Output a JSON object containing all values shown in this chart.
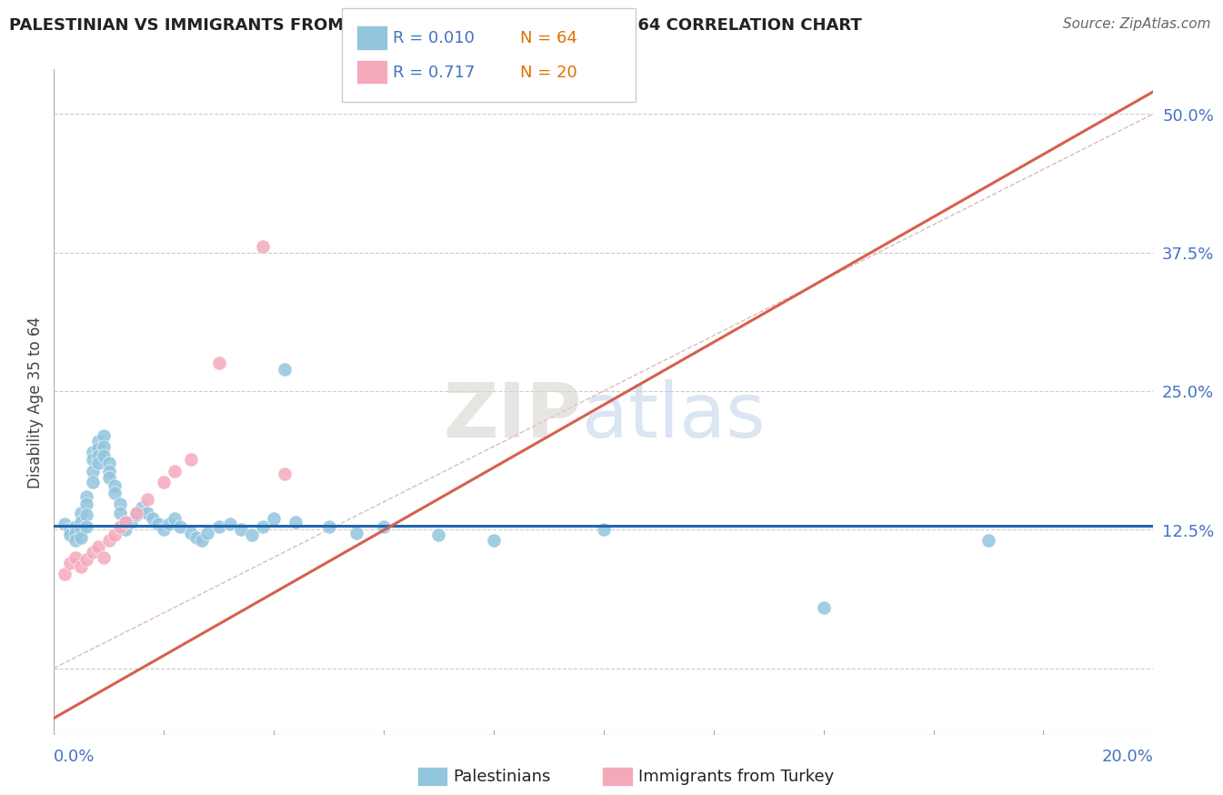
{
  "title": "PALESTINIAN VS IMMIGRANTS FROM TURKEY DISABILITY AGE 35 TO 64 CORRELATION CHART",
  "source": "Source: ZipAtlas.com",
  "ylabel": "Disability Age 35 to 64",
  "xmin": 0.0,
  "xmax": 0.2,
  "ymin": -0.06,
  "ymax": 0.54,
  "yticks": [
    0.0,
    0.125,
    0.25,
    0.375,
    0.5
  ],
  "ytick_labels": [
    "",
    "12.5%",
    "25.0%",
    "37.5%",
    "50.0%"
  ],
  "legend_r1": "R = 0.010",
  "legend_n1": "N = 64",
  "legend_r2": "R = 0.717",
  "legend_n2": "N = 20",
  "blue_color": "#92c5de",
  "pink_color": "#f4a9bb",
  "line_blue_color": "#2166ac",
  "line_pink_color": "#d6604d",
  "ref_line_color": "#ccb0b0",
  "blue_scatter_size": 120,
  "pink_scatter_size": 120,
  "blue_x": [
    0.002,
    0.003,
    0.003,
    0.004,
    0.004,
    0.004,
    0.005,
    0.005,
    0.005,
    0.005,
    0.006,
    0.006,
    0.006,
    0.006,
    0.007,
    0.007,
    0.007,
    0.007,
    0.008,
    0.008,
    0.008,
    0.008,
    0.009,
    0.009,
    0.009,
    0.01,
    0.01,
    0.01,
    0.011,
    0.011,
    0.012,
    0.012,
    0.013,
    0.013,
    0.014,
    0.015,
    0.016,
    0.017,
    0.018,
    0.019,
    0.02,
    0.021,
    0.022,
    0.023,
    0.025,
    0.026,
    0.027,
    0.028,
    0.03,
    0.032,
    0.034,
    0.036,
    0.038,
    0.04,
    0.042,
    0.044,
    0.05,
    0.055,
    0.06,
    0.07,
    0.08,
    0.1,
    0.14,
    0.17
  ],
  "blue_y": [
    0.13,
    0.125,
    0.12,
    0.128,
    0.122,
    0.115,
    0.14,
    0.132,
    0.125,
    0.118,
    0.155,
    0.148,
    0.138,
    0.128,
    0.195,
    0.188,
    0.178,
    0.168,
    0.205,
    0.198,
    0.192,
    0.185,
    0.21,
    0.2,
    0.192,
    0.185,
    0.178,
    0.172,
    0.165,
    0.158,
    0.148,
    0.14,
    0.132,
    0.125,
    0.132,
    0.138,
    0.145,
    0.14,
    0.135,
    0.13,
    0.125,
    0.13,
    0.135,
    0.128,
    0.122,
    0.118,
    0.115,
    0.122,
    0.128,
    0.13,
    0.125,
    0.12,
    0.128,
    0.135,
    0.27,
    0.132,
    0.128,
    0.122,
    0.128,
    0.12,
    0.115,
    0.125,
    0.055,
    0.115
  ],
  "pink_x": [
    0.002,
    0.003,
    0.004,
    0.005,
    0.006,
    0.007,
    0.008,
    0.009,
    0.01,
    0.011,
    0.012,
    0.013,
    0.015,
    0.017,
    0.02,
    0.022,
    0.025,
    0.03,
    0.038,
    0.042
  ],
  "pink_y": [
    0.085,
    0.095,
    0.1,
    0.092,
    0.098,
    0.105,
    0.11,
    0.1,
    0.115,
    0.12,
    0.128,
    0.132,
    0.14,
    0.152,
    0.168,
    0.178,
    0.188,
    0.275,
    0.38,
    0.175
  ],
  "blue_line_y_intercept": 0.1285,
  "blue_line_slope": 0.0,
  "pink_line_x0": 0.0,
  "pink_line_y0": -0.045,
  "pink_line_x1": 0.2,
  "pink_line_y1": 0.52
}
